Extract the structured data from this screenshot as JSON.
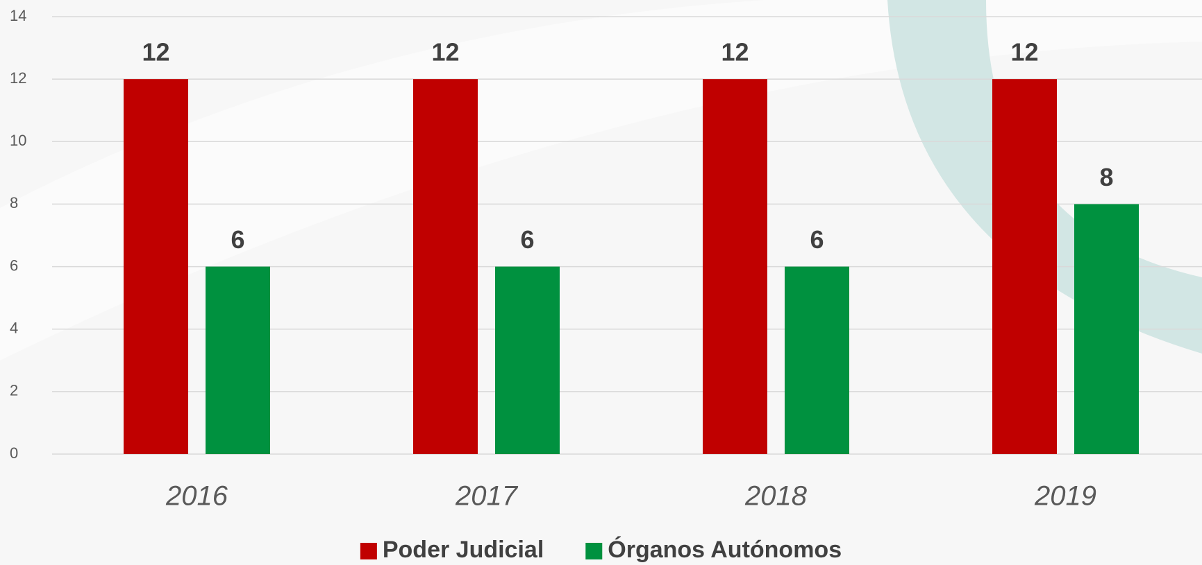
{
  "chart_data": {
    "type": "bar",
    "categories": [
      "2016",
      "2017",
      "2018",
      "2019"
    ],
    "series": [
      {
        "name": "Poder Judicial",
        "color": "#c00000",
        "values": [
          12,
          12,
          12,
          12
        ]
      },
      {
        "name": "Órganos Autónomos",
        "color": "#00913f",
        "values": [
          6,
          6,
          6,
          8
        ]
      }
    ],
    "ylim": [
      0,
      14
    ],
    "yticks": [
      0,
      2,
      4,
      6,
      8,
      10,
      12,
      14
    ],
    "grid": true,
    "legend": "bottom"
  }
}
